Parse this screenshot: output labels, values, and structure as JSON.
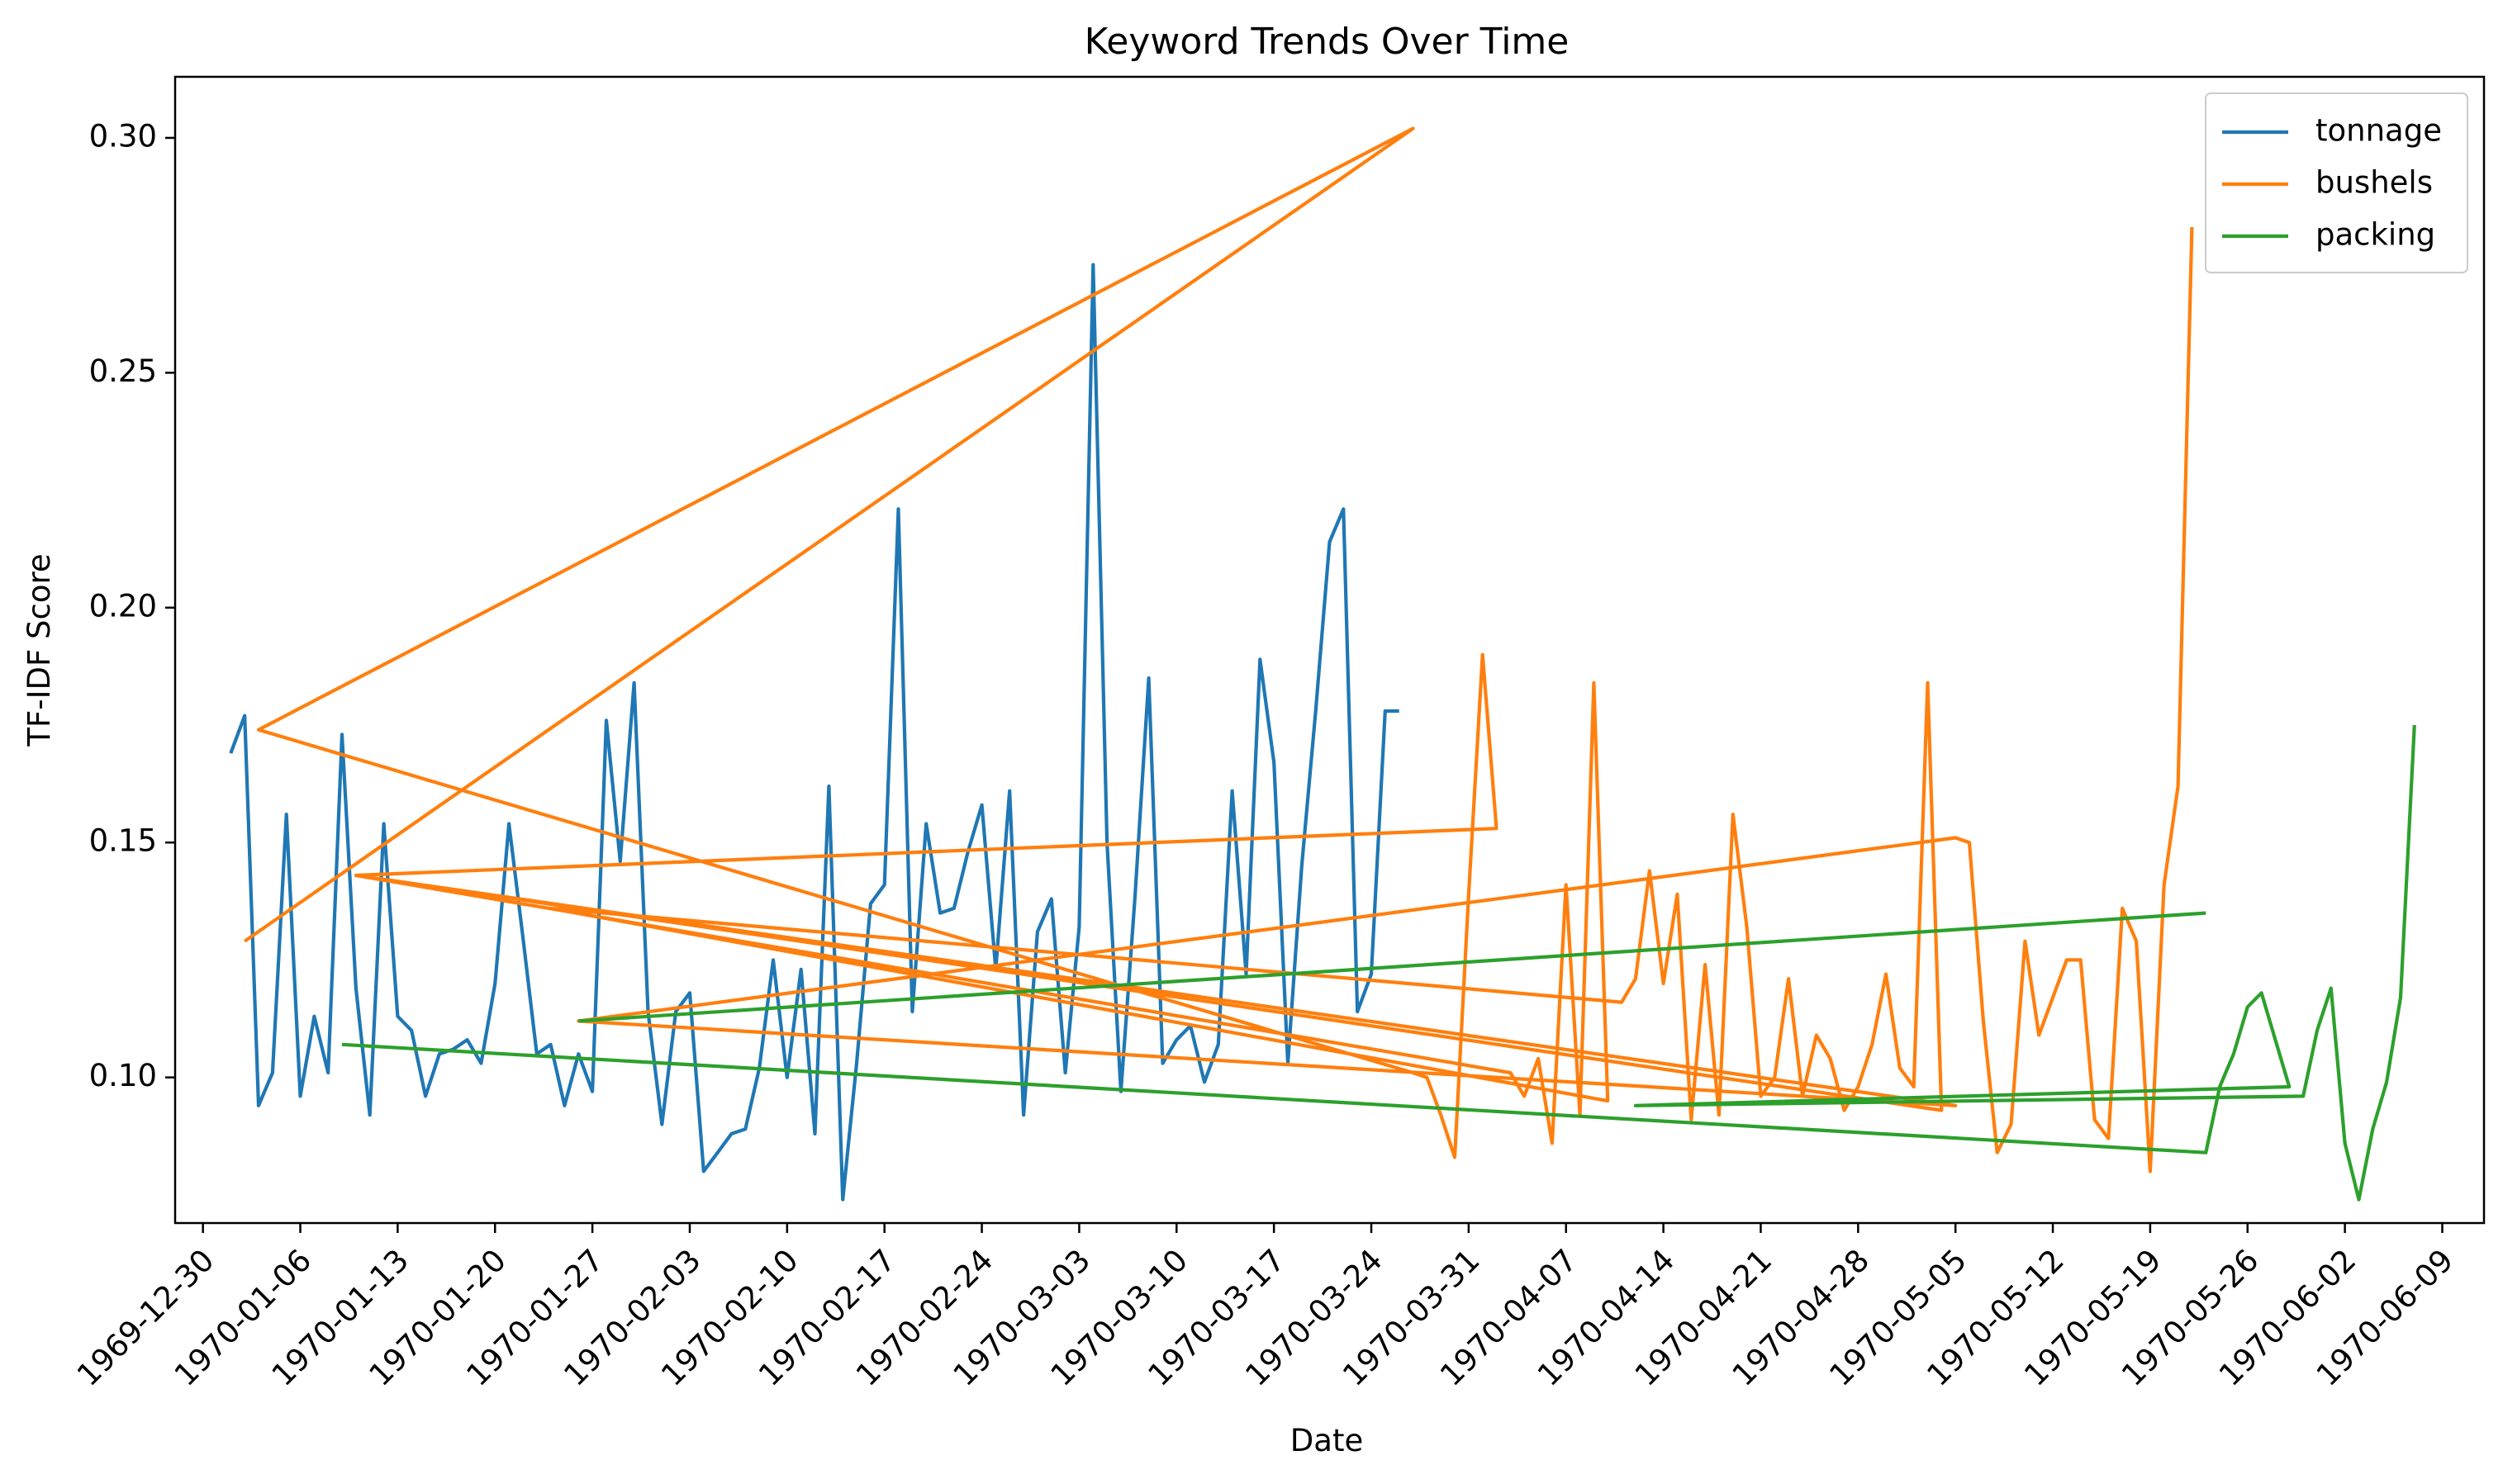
{
  "chart_data": {
    "type": "line",
    "title": "Keyword Trends Over Time",
    "xlabel": "Date",
    "ylabel": "TF-IDF Score",
    "xlim": [
      "1969-12-28",
      "1970-06-12"
    ],
    "ylim": [
      0.069,
      0.313
    ],
    "x_tick_labels": [
      "1969-12-30",
      "1970-01-06",
      "1970-01-13",
      "1970-01-20",
      "1970-01-27",
      "1970-02-03",
      "1970-02-10",
      "1970-02-17",
      "1970-02-24",
      "1970-03-03",
      "1970-03-10",
      "1970-03-17",
      "1970-03-24",
      "1970-03-31",
      "1970-04-07",
      "1970-04-14",
      "1970-04-21",
      "1970-04-28",
      "1970-05-05",
      "1970-05-12",
      "1970-05-19",
      "1970-05-26",
      "1970-06-02",
      "1970-06-09"
    ],
    "y_tick_labels": [
      "0.10",
      "0.15",
      "0.20",
      "0.25",
      "0.30"
    ],
    "y_ticks": [
      0.1,
      0.15,
      0.2,
      0.25,
      0.3
    ],
    "grid": false,
    "legend_position": "top-right",
    "series": [
      {
        "name": "tonnage",
        "color": "#1f77b4",
        "points": [
          [
            "1970-01-01",
            0.169
          ],
          [
            "1970-01-02",
            0.177
          ],
          [
            "1970-01-03",
            0.094
          ],
          [
            "1970-01-04",
            0.101
          ],
          [
            "1970-01-05",
            0.156
          ],
          [
            "1970-01-06",
            0.096
          ],
          [
            "1970-01-07",
            0.113
          ],
          [
            "1970-01-08",
            0.101
          ],
          [
            "1970-01-09",
            0.173
          ],
          [
            "1970-01-10",
            0.119
          ],
          [
            "1970-01-11",
            0.092
          ],
          [
            "1970-01-12",
            0.154
          ],
          [
            "1970-01-13",
            0.113
          ],
          [
            "1970-01-14",
            0.11
          ],
          [
            "1970-01-15",
            0.096
          ],
          [
            "1970-01-16",
            0.105
          ],
          [
            "1970-01-17",
            0.106
          ],
          [
            "1970-01-18",
            0.108
          ],
          [
            "1970-01-19",
            0.103
          ],
          [
            "1970-01-20",
            0.12
          ],
          [
            "1970-01-21",
            0.154
          ],
          [
            "1970-01-22",
            0.13
          ],
          [
            "1970-01-23",
            0.105
          ],
          [
            "1970-01-24",
            0.107
          ],
          [
            "1970-01-25",
            0.094
          ],
          [
            "1970-01-26",
            0.105
          ],
          [
            "1970-01-27",
            0.097
          ],
          [
            "1970-01-28",
            0.176
          ],
          [
            "1970-01-29",
            0.146
          ],
          [
            "1970-01-30",
            0.184
          ],
          [
            "1970-01-31",
            0.114
          ],
          [
            "1970-02-01",
            0.09
          ],
          [
            "1970-02-02",
            0.114
          ],
          [
            "1970-02-03",
            0.118
          ],
          [
            "1970-02-04",
            0.08
          ],
          [
            "1970-02-05",
            0.084
          ],
          [
            "1970-02-06",
            0.088
          ],
          [
            "1970-02-07",
            0.089
          ],
          [
            "1970-02-08",
            0.102
          ],
          [
            "1970-02-09",
            0.125
          ],
          [
            "1970-02-10",
            0.1
          ],
          [
            "1970-02-11",
            0.123
          ],
          [
            "1970-02-12",
            0.088
          ],
          [
            "1970-02-13",
            0.162
          ],
          [
            "1970-02-14",
            0.074
          ],
          [
            "1970-02-15",
            0.103
          ],
          [
            "1970-02-16",
            0.137
          ],
          [
            "1970-02-17",
            0.141
          ],
          [
            "1970-02-18",
            0.221
          ],
          [
            "1970-02-19",
            0.114
          ],
          [
            "1970-02-20",
            0.154
          ],
          [
            "1970-02-21",
            0.135
          ],
          [
            "1970-02-22",
            0.136
          ],
          [
            "1970-02-23",
            0.148
          ],
          [
            "1970-02-24",
            0.158
          ],
          [
            "1970-02-25",
            0.123
          ],
          [
            "1970-02-26",
            0.161
          ],
          [
            "1970-02-27",
            0.092
          ],
          [
            "1970-02-28",
            0.131
          ],
          [
            "1970-03-01",
            0.138
          ],
          [
            "1970-03-02",
            0.101
          ],
          [
            "1970-03-03",
            0.132
          ],
          [
            "1970-03-04",
            0.273
          ],
          [
            "1970-03-05",
            0.15
          ],
          [
            "1970-03-06",
            0.097
          ],
          [
            "1970-03-07",
            0.138
          ],
          [
            "1970-03-08",
            0.185
          ],
          [
            "1970-03-09",
            0.103
          ],
          [
            "1970-03-10",
            0.108
          ],
          [
            "1970-03-11",
            0.111
          ],
          [
            "1970-03-12",
            0.099
          ],
          [
            "1970-03-13",
            0.107
          ],
          [
            "1970-03-14",
            0.161
          ],
          [
            "1970-03-15",
            0.122
          ],
          [
            "1970-03-16",
            0.189
          ],
          [
            "1970-03-17",
            0.167
          ],
          [
            "1970-03-18",
            0.103
          ],
          [
            "1970-03-19",
            0.145
          ],
          [
            "1970-03-20",
            0.178
          ],
          [
            "1970-03-21",
            0.214
          ],
          [
            "1970-03-22",
            0.221
          ],
          [
            "1970-03-23",
            0.114
          ],
          [
            "1970-03-24",
            0.122
          ],
          [
            "1970-03-25",
            0.178
          ],
          [
            "1970-03-26",
            0.178
          ]
        ]
      },
      {
        "name": "bushels",
        "color": "#ff7f0e",
        "points": [
          [
            "1970-01-02",
            0.129
          ],
          [
            "1970-03-27",
            0.302
          ],
          [
            "1970-01-03",
            0.174
          ],
          [
            "1970-03-27",
            0.101
          ],
          [
            "1970-03-28",
            0.1
          ],
          [
            "1970-03-29",
            0.092
          ],
          [
            "1970-03-30",
            0.083
          ],
          [
            "1970-03-31",
            0.139
          ],
          [
            "1970-04-01",
            0.19
          ],
          [
            "1970-04-02",
            0.153
          ],
          [
            "1970-01-10",
            0.143
          ],
          [
            "1970-04-03",
            0.101
          ],
          [
            "1970-04-04",
            0.096
          ],
          [
            "1970-04-05",
            0.104
          ],
          [
            "1970-04-06",
            0.086
          ],
          [
            "1970-04-07",
            0.141
          ],
          [
            "1970-04-08",
            0.092
          ],
          [
            "1970-04-09",
            0.184
          ],
          [
            "1970-04-10",
            0.095
          ],
          [
            "1970-01-24",
            0.136
          ],
          [
            "1970-04-11",
            0.116
          ],
          [
            "1970-04-12",
            0.121
          ],
          [
            "1970-04-13",
            0.144
          ],
          [
            "1970-04-14",
            0.12
          ],
          [
            "1970-04-15",
            0.139
          ],
          [
            "1970-04-16",
            0.091
          ],
          [
            "1970-04-17",
            0.124
          ],
          [
            "1970-04-18",
            0.092
          ],
          [
            "1970-04-19",
            0.156
          ],
          [
            "1970-04-20",
            0.132
          ],
          [
            "1970-04-21",
            0.096
          ],
          [
            "1970-04-22",
            0.1
          ],
          [
            "1970-04-23",
            0.121
          ],
          [
            "1970-04-24",
            0.096
          ],
          [
            "1970-04-25",
            0.109
          ],
          [
            "1970-04-26",
            0.104
          ],
          [
            "1970-04-27",
            0.093
          ],
          [
            "1970-04-28",
            0.098
          ],
          [
            "1970-04-29",
            0.107
          ],
          [
            "1970-04-30",
            0.122
          ],
          [
            "1970-05-01",
            0.102
          ],
          [
            "1970-05-02",
            0.098
          ],
          [
            "1970-05-03",
            0.184
          ],
          [
            "1970-05-04",
            0.093
          ],
          [
            "1970-01-10",
            0.143
          ],
          [
            "1970-05-05",
            0.094
          ],
          [
            "1970-01-26",
            0.112
          ],
          [
            "1970-05-05",
            0.151
          ],
          [
            "1970-05-06",
            0.15
          ],
          [
            "1970-05-07",
            0.112
          ],
          [
            "1970-05-08",
            0.084
          ],
          [
            "1970-05-09",
            0.09
          ],
          [
            "1970-05-10",
            0.129
          ],
          [
            "1970-05-11",
            0.109
          ],
          [
            "1970-05-12",
            0.117
          ],
          [
            "1970-05-13",
            0.125
          ],
          [
            "1970-05-14",
            0.125
          ],
          [
            "1970-05-15",
            0.091
          ],
          [
            "1970-05-16",
            0.087
          ],
          [
            "1970-05-17",
            0.136
          ],
          [
            "1970-05-18",
            0.129
          ],
          [
            "1970-05-19",
            0.08
          ],
          [
            "1970-05-20",
            0.141
          ],
          [
            "1970-05-21",
            0.162
          ],
          [
            "1970-05-22",
            0.281
          ]
        ]
      },
      {
        "name": "packing",
        "color": "#2ca02c",
        "points": [
          [
            "1970-01-09",
            0.107
          ],
          [
            "1970-05-23",
            0.084
          ],
          [
            "1970-05-24",
            0.098
          ],
          [
            "1970-05-25",
            0.105
          ],
          [
            "1970-05-26",
            0.115
          ],
          [
            "1970-05-27",
            0.118
          ],
          [
            "1970-05-28",
            0.108
          ],
          [
            "1970-05-29",
            0.098
          ],
          [
            "1970-04-12",
            0.094
          ],
          [
            "1970-05-30",
            0.096
          ],
          [
            "1970-05-31",
            0.11
          ],
          [
            "1970-06-01",
            0.119
          ],
          [
            "1970-06-02",
            0.086
          ],
          [
            "1970-06-03",
            0.074
          ],
          [
            "1970-06-04",
            0.089
          ],
          [
            "1970-06-05",
            0.099
          ],
          [
            "1970-06-06",
            0.117
          ],
          [
            "1970-06-07",
            0.175
          ]
        ]
      },
      {
        "name": "",
        "color": "#2ca02c",
        "points": [
          [
            "1970-01-26",
            0.112
          ],
          [
            "1970-05-23",
            0.135
          ]
        ]
      }
    ]
  }
}
